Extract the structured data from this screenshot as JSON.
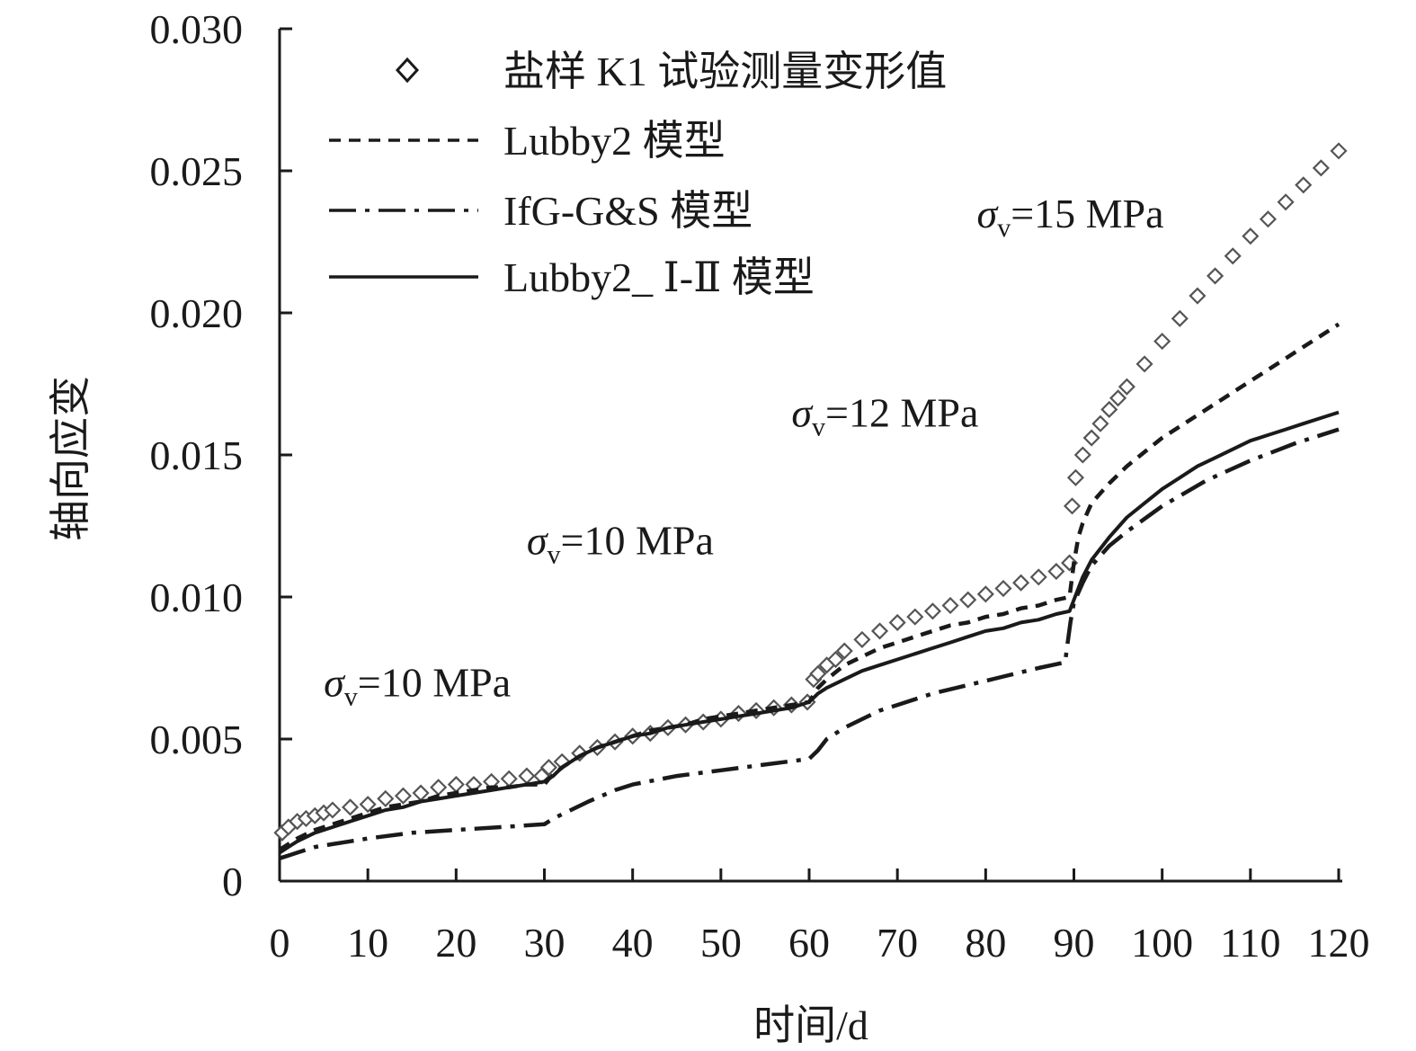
{
  "chart_data": {
    "type": "line",
    "title": "",
    "xlabel": "时间/d",
    "ylabel": "轴向应变",
    "xlim": [
      0,
      120
    ],
    "ylim": [
      0,
      0.03
    ],
    "x_ticks": [
      "0",
      "10",
      "20",
      "30",
      "40",
      "50",
      "60",
      "70",
      "80",
      "90",
      "100",
      "110",
      "120"
    ],
    "y_ticks": [
      "0",
      "0.005",
      "0.010",
      "0.015",
      "0.020",
      "0.025",
      "0.030"
    ],
    "grid": false,
    "legend_position": "top-left",
    "annotations": [
      {
        "symbol": "σ",
        "sub": "v",
        "text": "=10 MPa",
        "x": 5,
        "y": 0.0065
      },
      {
        "symbol": "σ",
        "sub": "v",
        "text": "=10 MPa",
        "x": 28,
        "y": 0.0115
      },
      {
        "symbol": "σ",
        "sub": "v",
        "text": "=12 MPa",
        "x": 58,
        "y": 0.016
      },
      {
        "symbol": "σ",
        "sub": "v",
        "text": "=15 MPa",
        "x": 79,
        "y": 0.023
      }
    ],
    "series": [
      {
        "name": "盐样 K1 试验测量变形值",
        "style": "diamond-markers",
        "x": [
          0.3,
          1,
          2,
          3,
          4,
          5,
          6,
          8,
          10,
          12,
          14,
          16,
          18,
          20,
          22,
          24,
          26,
          28,
          29.7,
          30.5,
          32,
          34,
          36,
          38,
          40,
          42,
          44,
          46,
          48,
          50,
          52,
          54,
          56,
          58,
          59.8,
          60.5,
          61,
          62,
          63,
          64,
          66,
          68,
          70,
          72,
          74,
          76,
          78,
          80,
          82,
          84,
          86,
          88,
          89.5,
          89.8,
          90.2,
          91,
          92,
          93,
          94,
          95,
          96,
          98,
          100,
          102,
          104,
          106,
          108,
          110,
          112,
          114,
          116,
          118,
          120
        ],
        "y": [
          0.0017,
          0.0019,
          0.0021,
          0.0022,
          0.0023,
          0.0024,
          0.0025,
          0.0026,
          0.0027,
          0.0029,
          0.003,
          0.0031,
          0.0033,
          0.0034,
          0.0034,
          0.0035,
          0.0036,
          0.0037,
          0.0037,
          0.004,
          0.0042,
          0.0045,
          0.0047,
          0.0049,
          0.0051,
          0.0052,
          0.0054,
          0.0055,
          0.0056,
          0.0057,
          0.0059,
          0.006,
          0.0061,
          0.0062,
          0.0063,
          0.0071,
          0.0073,
          0.0076,
          0.0078,
          0.0081,
          0.0085,
          0.0088,
          0.0091,
          0.0093,
          0.0095,
          0.0097,
          0.0099,
          0.0101,
          0.0103,
          0.0105,
          0.0107,
          0.0109,
          0.0112,
          0.0132,
          0.0142,
          0.015,
          0.0156,
          0.0161,
          0.0166,
          0.017,
          0.0174,
          0.0182,
          0.019,
          0.0198,
          0.0206,
          0.0213,
          0.022,
          0.0227,
          0.0233,
          0.0239,
          0.0245,
          0.0251,
          0.0257
        ]
      },
      {
        "name": "Lubby2 模型",
        "style": "dashed",
        "x": [
          0,
          1,
          2,
          4,
          6,
          8,
          10,
          12,
          14,
          16,
          18,
          20,
          22,
          24,
          26,
          28,
          30,
          30.5,
          32,
          34,
          36,
          38,
          40,
          42,
          44,
          46,
          48,
          50,
          52,
          54,
          56,
          58,
          60,
          61,
          62,
          64,
          66,
          68,
          70,
          72,
          74,
          76,
          78,
          80,
          82,
          84,
          86,
          88,
          89.5,
          90,
          90.5,
          91,
          92,
          94,
          96,
          98,
          100,
          102,
          104,
          106,
          108,
          110,
          112,
          114,
          116,
          118,
          120
        ],
        "y": [
          0.0011,
          0.0013,
          0.0015,
          0.0018,
          0.002,
          0.0022,
          0.0024,
          0.0026,
          0.0027,
          0.0028,
          0.003,
          0.0031,
          0.0032,
          0.0033,
          0.0033,
          0.0034,
          0.0034,
          0.0036,
          0.004,
          0.0044,
          0.0047,
          0.0049,
          0.0051,
          0.0053,
          0.0054,
          0.0055,
          0.0057,
          0.0058,
          0.0059,
          0.006,
          0.0061,
          0.0062,
          0.0063,
          0.0068,
          0.0071,
          0.0076,
          0.0079,
          0.0082,
          0.0084,
          0.0086,
          0.0088,
          0.009,
          0.0091,
          0.0093,
          0.0094,
          0.0096,
          0.0097,
          0.0099,
          0.01,
          0.0112,
          0.0121,
          0.0126,
          0.0133,
          0.014,
          0.0146,
          0.0151,
          0.0156,
          0.016,
          0.0164,
          0.0168,
          0.0172,
          0.0176,
          0.018,
          0.0184,
          0.0188,
          0.0192,
          0.0196
        ]
      },
      {
        "name": "IfG-G&S 模型",
        "style": "dash-dot",
        "x": [
          0,
          1,
          2,
          4,
          6,
          8,
          10,
          15,
          20,
          25,
          30,
          31,
          33,
          35,
          38,
          40,
          45,
          50,
          55,
          60,
          61,
          62,
          64,
          66,
          68,
          70,
          74,
          78,
          82,
          86,
          89,
          89.3,
          89.6,
          90,
          91,
          92,
          94,
          96,
          100,
          105,
          110,
          115,
          120
        ],
        "y": [
          0.0008,
          0.0009,
          0.001,
          0.0012,
          0.0013,
          0.0014,
          0.0015,
          0.0017,
          0.0018,
          0.0019,
          0.002,
          0.0022,
          0.0025,
          0.0028,
          0.0032,
          0.0034,
          0.0037,
          0.0039,
          0.0041,
          0.0043,
          0.0046,
          0.005,
          0.0054,
          0.0057,
          0.006,
          0.0062,
          0.0066,
          0.0069,
          0.0072,
          0.0075,
          0.0077,
          0.0084,
          0.0091,
          0.0098,
          0.0105,
          0.0111,
          0.0118,
          0.0123,
          0.0132,
          0.0141,
          0.0148,
          0.0154,
          0.0159
        ]
      },
      {
        "name": "Lubby2_ Ⅰ-Ⅱ 模型",
        "style": "solid",
        "x": [
          0,
          1,
          2,
          4,
          6,
          8,
          10,
          12,
          14,
          16,
          18,
          20,
          22,
          24,
          26,
          28,
          30,
          31,
          32,
          34,
          36,
          38,
          40,
          42,
          44,
          46,
          48,
          50,
          52,
          54,
          56,
          58,
          60,
          61,
          62,
          64,
          66,
          68,
          70,
          72,
          74,
          76,
          78,
          80,
          82,
          84,
          86,
          88,
          89.5,
          90,
          91,
          92,
          94,
          96,
          98,
          100,
          102,
          104,
          106,
          108,
          110,
          112,
          114,
          116,
          118,
          120
        ],
        "y": [
          0.001,
          0.0012,
          0.0014,
          0.0017,
          0.0019,
          0.0021,
          0.0023,
          0.0025,
          0.0026,
          0.0028,
          0.0029,
          0.003,
          0.0031,
          0.0032,
          0.0033,
          0.0034,
          0.0035,
          0.0037,
          0.004,
          0.0044,
          0.0047,
          0.0049,
          0.0051,
          0.0052,
          0.0054,
          0.0055,
          0.0056,
          0.0057,
          0.0058,
          0.0059,
          0.006,
          0.0061,
          0.0063,
          0.0066,
          0.0068,
          0.0071,
          0.0074,
          0.0076,
          0.0078,
          0.008,
          0.0082,
          0.0084,
          0.0086,
          0.0088,
          0.0089,
          0.0091,
          0.0092,
          0.0094,
          0.0095,
          0.0099,
          0.0107,
          0.0113,
          0.0121,
          0.0128,
          0.0133,
          0.0138,
          0.0142,
          0.0146,
          0.0149,
          0.0152,
          0.0155,
          0.0157,
          0.0159,
          0.0161,
          0.0163,
          0.0165
        ]
      }
    ]
  }
}
